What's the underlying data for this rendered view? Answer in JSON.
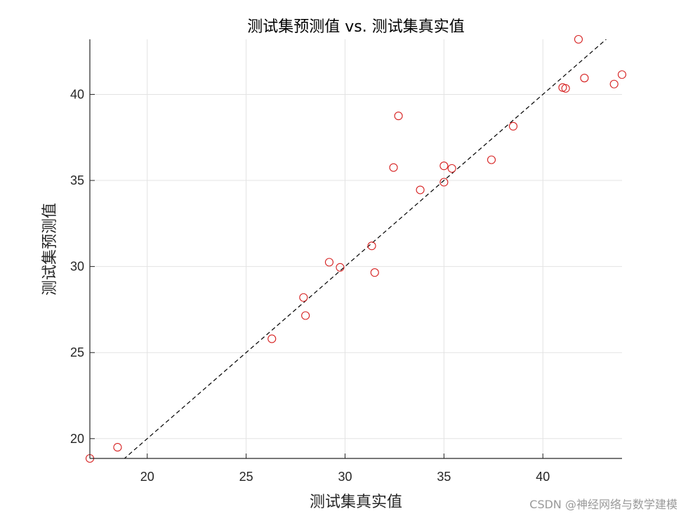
{
  "chart_data": {
    "type": "scatter",
    "title": "测试集预测值 vs. 测试集真实值",
    "xlabel": "测试集真实值",
    "ylabel": "测试集预测值",
    "xlim": [
      17.1,
      44.0
    ],
    "ylim": [
      18.85,
      43.2
    ],
    "xticks": [
      20,
      25,
      30,
      35,
      40
    ],
    "yticks": [
      20,
      25,
      30,
      35,
      40
    ],
    "grid": true,
    "reference_line": {
      "style": "dashed",
      "color": "#000000",
      "from": [
        18.8,
        18.8
      ],
      "to": [
        43.2,
        43.2
      ]
    },
    "series": [
      {
        "marker": "open-circle",
        "color": "#d62020",
        "points": [
          {
            "x": 17.1,
            "y": 18.85
          },
          {
            "x": 18.5,
            "y": 19.5
          },
          {
            "x": 26.3,
            "y": 25.8
          },
          {
            "x": 27.9,
            "y": 28.2
          },
          {
            "x": 28.0,
            "y": 27.15
          },
          {
            "x": 29.2,
            "y": 30.25
          },
          {
            "x": 29.75,
            "y": 29.95
          },
          {
            "x": 31.35,
            "y": 31.2
          },
          {
            "x": 31.5,
            "y": 29.65
          },
          {
            "x": 32.45,
            "y": 35.75
          },
          {
            "x": 32.7,
            "y": 38.75
          },
          {
            "x": 33.8,
            "y": 34.45
          },
          {
            "x": 35.0,
            "y": 35.85
          },
          {
            "x": 35.0,
            "y": 34.9
          },
          {
            "x": 35.4,
            "y": 35.7
          },
          {
            "x": 37.4,
            "y": 36.2
          },
          {
            "x": 38.5,
            "y": 38.15
          },
          {
            "x": 41.0,
            "y": 40.4
          },
          {
            "x": 41.15,
            "y": 40.35
          },
          {
            "x": 41.8,
            "y": 43.2
          },
          {
            "x": 42.1,
            "y": 40.95
          },
          {
            "x": 43.6,
            "y": 40.6
          },
          {
            "x": 44.0,
            "y": 41.15
          }
        ]
      }
    ]
  },
  "watermark": "CSDN @神经网络与数学建模"
}
